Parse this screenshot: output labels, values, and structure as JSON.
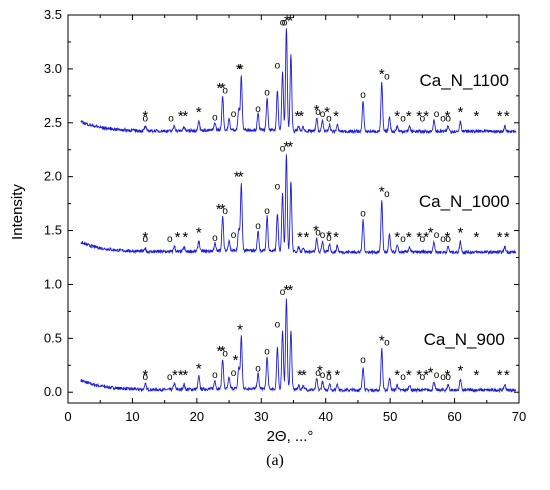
{
  "chart_data": {
    "type": "line",
    "title": "",
    "xlabel": "2Θ, ...°",
    "ylabel": "Intensity",
    "xlim": [
      0,
      70
    ],
    "ylim": [
      -0.1,
      3.5
    ],
    "x_ticks": [
      "0",
      "10",
      "20",
      "30",
      "40",
      "50",
      "60",
      "70"
    ],
    "x_tick_values": [
      0,
      10,
      20,
      30,
      40,
      50,
      60,
      70
    ],
    "y_ticks": [
      "0.0",
      "0.5",
      "1.0",
      "1.5",
      "2.0",
      "2.5",
      "3.0",
      "3.5"
    ],
    "y_tick_values": [
      0.0,
      0.5,
      1.0,
      1.5,
      2.0,
      2.5,
      3.0,
      3.5
    ],
    "grid": false,
    "line_color": "#1f1fd6",
    "marker_symbols": {
      "star": "*",
      "circle": "o"
    },
    "series": [
      {
        "name": "Ca_N_900",
        "baseline": 0.02,
        "peaks": [
          [
            12.0,
            0.05
          ],
          [
            16.5,
            0.06
          ],
          [
            18.0,
            0.05
          ],
          [
            20.3,
            0.12
          ],
          [
            22.8,
            0.08
          ],
          [
            24.0,
            0.28
          ],
          [
            25.0,
            0.1
          ],
          [
            26.5,
            0.2
          ],
          [
            26.9,
            0.48
          ],
          [
            29.5,
            0.14
          ],
          [
            30.9,
            0.3
          ],
          [
            32.5,
            0.38
          ],
          [
            33.3,
            0.55
          ],
          [
            33.9,
            0.85
          ],
          [
            34.6,
            0.55
          ],
          [
            35.8,
            0.04
          ],
          [
            36.5,
            0.04
          ],
          [
            38.6,
            0.1
          ],
          [
            39.5,
            0.08
          ],
          [
            40.6,
            0.06
          ],
          [
            41.8,
            0.06
          ],
          [
            45.8,
            0.22
          ],
          [
            48.7,
            0.38
          ],
          [
            49.9,
            0.12
          ],
          [
            51.1,
            0.05
          ],
          [
            53.0,
            0.05
          ],
          [
            56.8,
            0.08
          ],
          [
            59.0,
            0.05
          ],
          [
            60.9,
            0.1
          ],
          [
            67.8,
            0.05
          ]
        ],
        "stars_x": [
          12.0,
          16.6,
          17.5,
          18.2,
          20.3,
          23.5,
          24.0,
          26.0,
          26.7,
          33.9,
          34.5,
          36.0,
          36.6,
          39.1,
          40.5,
          41.8,
          48.7,
          51.1,
          52.9,
          54.5,
          55.6,
          56.3,
          58.9,
          60.9,
          63.4,
          67.0,
          68.1
        ],
        "circles_x": [
          12.0,
          15.8,
          22.8,
          24.4,
          25.7,
          29.5,
          30.9,
          32.5,
          33.3,
          38.8,
          39.5,
          40.5,
          45.8,
          49.5,
          52.0,
          55.0,
          57.2,
          58.2,
          59.0
        ],
        "label": "Ca_N_900"
      },
      {
        "name": "Ca_N_1000",
        "baseline": 1.3,
        "peaks": [
          [
            12.0,
            0.03
          ],
          [
            16.5,
            0.05
          ],
          [
            18.0,
            0.04
          ],
          [
            20.3,
            0.1
          ],
          [
            22.8,
            0.07
          ],
          [
            24.0,
            0.32
          ],
          [
            25.0,
            0.1
          ],
          [
            26.5,
            0.2
          ],
          [
            26.9,
            0.62
          ],
          [
            29.5,
            0.18
          ],
          [
            30.9,
            0.32
          ],
          [
            32.5,
            0.35
          ],
          [
            33.3,
            0.55
          ],
          [
            33.9,
            0.9
          ],
          [
            34.6,
            0.65
          ],
          [
            35.8,
            0.04
          ],
          [
            36.5,
            0.04
          ],
          [
            38.6,
            0.12
          ],
          [
            39.5,
            0.1
          ],
          [
            40.6,
            0.07
          ],
          [
            41.8,
            0.06
          ],
          [
            45.8,
            0.3
          ],
          [
            48.7,
            0.48
          ],
          [
            49.9,
            0.16
          ],
          [
            51.1,
            0.06
          ],
          [
            53.0,
            0.05
          ],
          [
            56.8,
            0.1
          ],
          [
            59.0,
            0.05
          ],
          [
            60.9,
            0.1
          ],
          [
            67.8,
            0.05
          ]
        ],
        "stars_x": [
          12.0,
          17.0,
          18.2,
          20.3,
          23.4,
          24.0,
          26.2,
          26.8,
          33.9,
          34.5,
          36.0,
          37.0,
          38.5,
          40.5,
          41.6,
          48.7,
          51.1,
          52.9,
          54.5,
          55.6,
          56.3,
          58.9,
          60.9,
          63.4,
          67.0,
          68.1
        ],
        "circles_x": [
          12.0,
          15.8,
          22.8,
          24.4,
          25.7,
          29.5,
          30.9,
          32.5,
          33.3,
          38.8,
          39.5,
          40.5,
          45.8,
          49.5,
          52.0,
          55.0,
          57.2,
          58.2,
          59.0
        ],
        "label": "Ca_N_1000"
      },
      {
        "name": "Ca_N_1100",
        "baseline": 2.42,
        "peaks": [
          [
            12.0,
            0.04
          ],
          [
            16.5,
            0.05
          ],
          [
            18.0,
            0.04
          ],
          [
            20.3,
            0.1
          ],
          [
            22.8,
            0.07
          ],
          [
            24.0,
            0.32
          ],
          [
            25.0,
            0.1
          ],
          [
            26.5,
            0.2
          ],
          [
            26.9,
            0.5
          ],
          [
            29.5,
            0.15
          ],
          [
            30.9,
            0.3
          ],
          [
            32.5,
            0.38
          ],
          [
            33.3,
            0.55
          ],
          [
            33.9,
            0.95
          ],
          [
            34.6,
            0.7
          ],
          [
            35.8,
            0.04
          ],
          [
            36.5,
            0.04
          ],
          [
            38.6,
            0.12
          ],
          [
            39.5,
            0.1
          ],
          [
            40.6,
            0.06
          ],
          [
            41.8,
            0.06
          ],
          [
            45.8,
            0.28
          ],
          [
            48.7,
            0.45
          ],
          [
            49.9,
            0.14
          ],
          [
            51.1,
            0.05
          ],
          [
            53.0,
            0.05
          ],
          [
            56.8,
            0.1
          ],
          [
            59.0,
            0.05
          ],
          [
            60.9,
            0.1
          ],
          [
            67.8,
            0.05
          ]
        ],
        "stars_x": [
          12.0,
          17.5,
          18.2,
          20.3,
          23.5,
          24.0,
          26.5,
          26.8,
          34.0,
          34.5,
          35.6,
          36.2,
          38.6,
          40.2,
          41.6,
          48.7,
          51.1,
          52.9,
          54.5,
          55.6,
          58.9,
          60.9,
          63.4,
          67.0,
          68.1
        ],
        "circles_x": [
          12.0,
          16.0,
          22.8,
          24.4,
          25.7,
          29.5,
          30.9,
          32.5,
          33.3,
          33.6,
          38.8,
          39.5,
          40.5,
          45.8,
          49.5,
          52.0,
          55.0,
          57.2,
          58.2,
          59.0
        ],
        "label": "Ca_N_1100"
      }
    ]
  },
  "caption": "(a)"
}
